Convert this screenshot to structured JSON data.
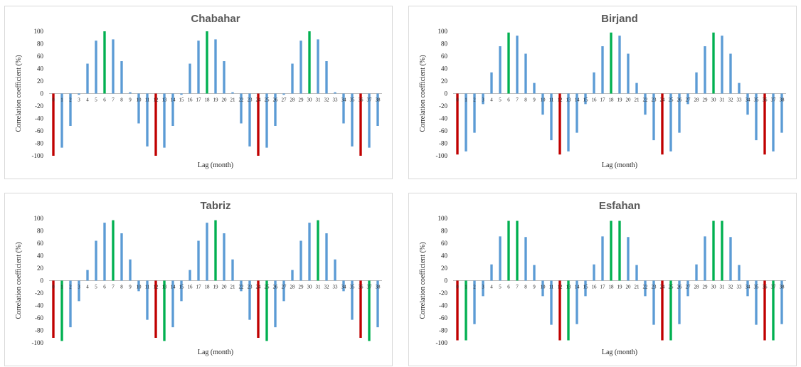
{
  "colors": {
    "neg": "#c00000",
    "pos": "#00b050",
    "other": "#5b9bd5"
  },
  "chart_data": [
    {
      "type": "bar",
      "title": "Chabahar",
      "xlabel": "Lag (month)",
      "ylabel": "Correlation coefficient (%)",
      "ylim": [
        -100,
        100
      ],
      "yticks": [
        100,
        80,
        60,
        40,
        20,
        0,
        -20,
        -40,
        -60,
        -80,
        -100
      ],
      "categories": [
        "0",
        "1",
        "2",
        "3",
        "4",
        "5",
        "6",
        "7",
        "8",
        "9",
        "10",
        "11",
        "12",
        "13",
        "14",
        "15",
        "16",
        "17",
        "18",
        "19",
        "20",
        "21",
        "22",
        "23",
        "24",
        "25",
        "26",
        "27",
        "28",
        "29",
        "30",
        "31",
        "32",
        "33",
        "34",
        "35",
        "36",
        "37",
        "38"
      ],
      "values": [
        -100,
        -87,
        -52,
        -2,
        48,
        85,
        100,
        87,
        52,
        2,
        -48,
        -85,
        -100,
        -87,
        -52,
        -2,
        48,
        85,
        100,
        87,
        52,
        2,
        -48,
        -85,
        -100,
        -87,
        -52,
        -2,
        48,
        85,
        100,
        87,
        52,
        2,
        -48,
        -85,
        -100,
        -87,
        -52
      ],
      "highlight_neg": [
        0,
        12,
        24,
        36
      ],
      "highlight_pos": [
        6,
        18,
        30
      ]
    },
    {
      "type": "bar",
      "title": "Birjand",
      "xlabel": "Lag (month)",
      "ylabel": "Correlation coefficient (%)",
      "ylim": [
        -100,
        100
      ],
      "yticks": [
        100,
        80,
        60,
        40,
        20,
        0,
        -20,
        -40,
        -60,
        -80,
        -100
      ],
      "categories": [
        "0",
        "1",
        "2",
        "3",
        "4",
        "5",
        "6",
        "7",
        "8",
        "9",
        "10",
        "11",
        "12",
        "13",
        "14",
        "15",
        "16",
        "17",
        "18",
        "19",
        "20",
        "21",
        "22",
        "23",
        "24",
        "25",
        "26",
        "27",
        "28",
        "29",
        "30",
        "31",
        "32",
        "33",
        "34",
        "35",
        "36",
        "37",
        "38"
      ],
      "values": [
        -98,
        -93,
        -63,
        -17,
        34,
        76,
        98,
        93,
        64,
        17,
        -34,
        -75,
        -98,
        -93,
        -63,
        -17,
        34,
        76,
        98,
        93,
        64,
        17,
        -34,
        -75,
        -98,
        -93,
        -63,
        -17,
        34,
        76,
        98,
        93,
        64,
        17,
        -34,
        -75,
        -98,
        -93,
        -63
      ],
      "highlight_neg": [
        0,
        12,
        24,
        36
      ],
      "highlight_pos": [
        6,
        18,
        30
      ]
    },
    {
      "type": "bar",
      "title": "Tabriz",
      "xlabel": "Lag (month)",
      "ylabel": "Correlation coefficient (%)",
      "ylim": [
        -100,
        100
      ],
      "yticks": [
        100,
        80,
        60,
        40,
        20,
        0,
        -20,
        -40,
        -60,
        -80,
        -100
      ],
      "categories": [
        "0",
        "1",
        "2",
        "3",
        "4",
        "5",
        "6",
        "7",
        "8",
        "9",
        "10",
        "11",
        "12",
        "13",
        "14",
        "15",
        "16",
        "17",
        "18",
        "19",
        "20",
        "21",
        "22",
        "23",
        "24",
        "25",
        "26",
        "27",
        "28",
        "29",
        "30",
        "31",
        "32",
        "33",
        "34",
        "35",
        "36",
        "37",
        "38"
      ],
      "values": [
        -92,
        -97,
        -75,
        -33,
        17,
        64,
        93,
        97,
        76,
        34,
        -17,
        -63,
        -92,
        -97,
        -75,
        -33,
        17,
        64,
        93,
        97,
        76,
        34,
        -17,
        -63,
        -92,
        -97,
        -75,
        -33,
        17,
        64,
        93,
        97,
        76,
        34,
        -17,
        -63,
        -92,
        -97,
        -75
      ],
      "highlight_neg": [
        0,
        12,
        24,
        36
      ],
      "highlight_pos": [
        1,
        7,
        13,
        19,
        25,
        31,
        37
      ]
    },
    {
      "type": "bar",
      "title": "Esfahan",
      "xlabel": "Lag (month)",
      "ylabel": "Correlation coefficient (%)",
      "ylim": [
        -100,
        100
      ],
      "yticks": [
        100,
        80,
        60,
        40,
        20,
        0,
        -20,
        -40,
        -60,
        -80,
        -100
      ],
      "categories": [
        "0",
        "1",
        "2",
        "3",
        "4",
        "5",
        "6",
        "7",
        "8",
        "9",
        "10",
        "11",
        "12",
        "13",
        "14",
        "15",
        "16",
        "17",
        "18",
        "19",
        "20",
        "21",
        "22",
        "23",
        "24",
        "25",
        "26",
        "27",
        "28",
        "29",
        "30",
        "31",
        "32",
        "33",
        "34",
        "35",
        "36",
        "37",
        "38"
      ],
      "values": [
        -96,
        -96,
        -70,
        -25,
        26,
        71,
        96,
        96,
        70,
        25,
        -25,
        -71,
        -96,
        -96,
        -70,
        -25,
        26,
        71,
        96,
        96,
        70,
        25,
        -25,
        -71,
        -96,
        -96,
        -70,
        -25,
        26,
        71,
        96,
        96,
        70,
        25,
        -25,
        -71,
        -96,
        -96,
        -70
      ],
      "highlight_neg": [
        0,
        12,
        24,
        36
      ],
      "highlight_pos": [
        1,
        6,
        7,
        13,
        18,
        19,
        25,
        30,
        31,
        37
      ]
    }
  ]
}
